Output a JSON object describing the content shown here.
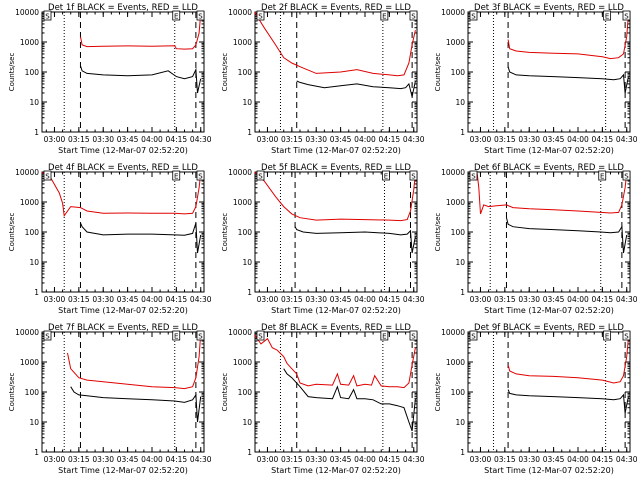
{
  "chart_data": [
    {
      "type": "line",
      "title": "Det 1f BLACK = Events, RED = LLD",
      "xlabel": "Start Time (12-Mar-07 02:52:20)",
      "ylabel": "Counts/sec",
      "y_scale": "log",
      "ylim": [
        1,
        10000
      ],
      "xlim": [
        "02:52:20",
        "04:32:00"
      ],
      "x_ticks": [
        "03:00",
        "03:15",
        "03:30",
        "03:45",
        "04:00",
        "04:15",
        "04:30"
      ],
      "y_ticks": [
        "1",
        "10",
        "100",
        "1000",
        "10000"
      ],
      "flags": [
        "S",
        "E",
        "S"
      ],
      "lines": {
        "dotted": [
          "03:06",
          "04:14"
        ],
        "dashed": [
          "03:16",
          "04:27"
        ]
      },
      "series": [
        {
          "color": "#e00000",
          "x": [
            "03:16",
            "03:17",
            "03:20",
            "03:30",
            "03:45",
            "04:00",
            "04:14",
            "04:15",
            "04:20",
            "04:25",
            "04:27",
            "04:29",
            "04:30"
          ],
          "y": [
            1500,
            800,
            700,
            720,
            740,
            720,
            750,
            600,
            580,
            600,
            800,
            2000,
            9000
          ]
        },
        {
          "color": "#000000",
          "x": [
            "03:16",
            "03:17",
            "03:20",
            "03:30",
            "03:45",
            "04:00",
            "04:10",
            "04:15",
            "04:20",
            "04:25",
            "04:27",
            "04:28",
            "04:30"
          ],
          "y": [
            160,
            110,
            90,
            80,
            75,
            80,
            110,
            70,
            60,
            70,
            120,
            20,
            60
          ]
        }
      ]
    },
    {
      "type": "line",
      "title": "Det 2f BLACK = Events, RED = LLD",
      "xlabel": "Start Time (12-Mar-07 02:52:20)",
      "ylabel": "Counts/sec",
      "y_scale": "log",
      "ylim": [
        1,
        10000
      ],
      "xlim": [
        "02:52:20",
        "04:32:00"
      ],
      "x_ticks": [
        "03:00",
        "03:15",
        "03:30",
        "03:45",
        "04:00",
        "04:15",
        "04:30"
      ],
      "y_ticks": [
        "1",
        "10",
        "100",
        "1000",
        "10000"
      ],
      "flags": [
        "S",
        "E",
        "S"
      ],
      "lines": {
        "dotted": [
          "03:08",
          "04:11"
        ],
        "dashed": [
          "03:18",
          "04:29"
        ]
      },
      "series": [
        {
          "color": "#e00000",
          "x": [
            "02:52",
            "02:58",
            "03:05",
            "03:10",
            "03:15",
            "03:20",
            "03:30",
            "03:45",
            "03:55",
            "04:05",
            "04:15",
            "04:20",
            "04:24",
            "04:27",
            "04:29",
            "04:31"
          ],
          "y": [
            10000,
            3000,
            800,
            300,
            200,
            150,
            90,
            100,
            120,
            90,
            80,
            75,
            80,
            200,
            800,
            2500
          ]
        },
        {
          "color": "#000000",
          "x": [
            "03:18",
            "03:20",
            "03:25",
            "03:35",
            "03:45",
            "03:55",
            "04:05",
            "04:15",
            "04:22",
            "04:25",
            "04:27",
            "04:29",
            "04:31"
          ],
          "y": [
            50,
            45,
            38,
            30,
            35,
            40,
            32,
            30,
            28,
            30,
            40,
            15,
            50
          ]
        }
      ]
    },
    {
      "type": "line",
      "title": "Det 3f BLACK = Events, RED = LLD",
      "xlabel": "Start Time (12-Mar-07 02:52:20)",
      "ylabel": "Counts/sec",
      "y_scale": "log",
      "ylim": [
        1,
        10000
      ],
      "xlim": [
        "02:52:20",
        "04:32:00"
      ],
      "x_ticks": [
        "03:00",
        "03:15",
        "03:30",
        "03:45",
        "04:00",
        "04:15",
        "04:30"
      ],
      "y_ticks": [
        "1",
        "10",
        "100",
        "1000",
        "10000"
      ],
      "flags": [
        "S",
        "E",
        "S"
      ],
      "lines": {
        "dotted": [
          "03:08",
          "04:17"
        ],
        "dashed": [
          "03:17",
          "04:29"
        ]
      },
      "series": [
        {
          "color": "#e00000",
          "x": [
            "03:17",
            "03:18",
            "03:22",
            "03:30",
            "03:45",
            "04:00",
            "04:15",
            "04:20",
            "04:25",
            "04:28",
            "04:30",
            "04:31"
          ],
          "y": [
            1200,
            600,
            500,
            450,
            420,
            400,
            320,
            280,
            300,
            400,
            1500,
            8000
          ]
        },
        {
          "color": "#000000",
          "x": [
            "03:17",
            "03:18",
            "03:22",
            "03:30",
            "03:45",
            "04:00",
            "04:15",
            "04:22",
            "04:26",
            "04:28",
            "04:29",
            "04:31"
          ],
          "y": [
            150,
            100,
            80,
            75,
            70,
            65,
            60,
            55,
            60,
            80,
            20,
            70
          ]
        }
      ]
    },
    {
      "type": "line",
      "title": "Det 4f BLACK = Events, RED = LLD",
      "xlabel": "Start Time (12-Mar-07 02:52:20)",
      "ylabel": "Counts/sec",
      "y_scale": "log",
      "ylim": [
        1,
        10000
      ],
      "xlim": [
        "02:52:20",
        "04:32:00"
      ],
      "x_ticks": [
        "03:00",
        "03:15",
        "03:30",
        "03:45",
        "04:00",
        "04:15",
        "04:30"
      ],
      "y_ticks": [
        "1",
        "10",
        "100",
        "1000",
        "10000"
      ],
      "flags": [
        "S",
        "E",
        "S"
      ],
      "lines": {
        "dotted": [
          "03:06",
          "04:14"
        ],
        "dashed": [
          "03:16",
          "04:27"
        ]
      },
      "series": [
        {
          "color": "#e00000",
          "x": [
            "02:52",
            "02:58",
            "03:03",
            "03:05",
            "03:06",
            "03:10",
            "03:16",
            "03:20",
            "03:30",
            "03:45",
            "04:00",
            "04:14",
            "04:20",
            "04:25",
            "04:27",
            "04:29",
            "04:30"
          ],
          "y": [
            10000,
            6000,
            2000,
            900,
            350,
            700,
            650,
            500,
            420,
            430,
            420,
            420,
            400,
            420,
            700,
            3000,
            9000
          ]
        },
        {
          "color": "#000000",
          "x": [
            "03:16",
            "03:17",
            "03:20",
            "03:30",
            "03:45",
            "04:00",
            "04:14",
            "04:20",
            "04:25",
            "04:27",
            "04:28",
            "04:30"
          ],
          "y": [
            200,
            150,
            100,
            80,
            85,
            85,
            80,
            78,
            90,
            200,
            20,
            80
          ]
        }
      ]
    },
    {
      "type": "line",
      "title": "Det 5f BLACK = Events, RED = LLD",
      "xlabel": "Start Time (12-Mar-07 02:52:20)",
      "ylabel": "Counts/sec",
      "y_scale": "log",
      "ylim": [
        1,
        10000
      ],
      "xlim": [
        "02:52:20",
        "04:32:00"
      ],
      "x_ticks": [
        "03:00",
        "03:15",
        "03:30",
        "03:45",
        "04:00",
        "04:15",
        "04:30"
      ],
      "y_ticks": [
        "1",
        "10",
        "100",
        "1000",
        "10000"
      ],
      "flags": [
        "S",
        "E",
        "S"
      ],
      "lines": {
        "dotted": [
          "03:08",
          "04:12"
        ],
        "dashed": [
          "03:17",
          "04:28"
        ]
      },
      "series": [
        {
          "color": "#e00000",
          "x": [
            "02:52",
            "02:58",
            "03:05",
            "03:10",
            "03:15",
            "03:20",
            "03:30",
            "03:45",
            "04:00",
            "04:15",
            "04:22",
            "04:26",
            "04:28",
            "04:30",
            "04:31"
          ],
          "y": [
            10000,
            5000,
            1500,
            700,
            400,
            300,
            250,
            270,
            260,
            250,
            240,
            260,
            500,
            2500,
            9000
          ]
        },
        {
          "color": "#000000",
          "x": [
            "03:17",
            "03:18",
            "03:22",
            "03:30",
            "03:45",
            "04:00",
            "04:15",
            "04:22",
            "04:26",
            "04:28",
            "04:29",
            "04:31"
          ],
          "y": [
            150,
            120,
            100,
            90,
            95,
            100,
            90,
            80,
            85,
            110,
            20,
            70
          ]
        }
      ]
    },
    {
      "type": "line",
      "title": "Det 6f BLACK = Events, RED = LLD",
      "xlabel": "Start Time (12-Mar-07 02:52:20)",
      "ylabel": "Counts/sec",
      "y_scale": "log",
      "ylim": [
        1,
        10000
      ],
      "xlim": [
        "02:52:20",
        "04:32:00"
      ],
      "x_ticks": [
        "03:00",
        "03:15",
        "03:30",
        "03:45",
        "04:00",
        "04:15",
        "04:30"
      ],
      "y_ticks": [
        "1",
        "10",
        "100",
        "1000",
        "10000"
      ],
      "flags": [
        "S",
        "E",
        "S"
      ],
      "lines": {
        "dotted": [
          "03:06",
          "04:14"
        ],
        "dashed": [
          "03:16",
          "04:27"
        ]
      },
      "series": [
        {
          "color": "#e00000",
          "x": [
            "02:58",
            "02:59",
            "03:00",
            "03:02",
            "03:05",
            "03:10",
            "03:16",
            "03:20",
            "03:30",
            "03:45",
            "04:00",
            "04:14",
            "04:20",
            "04:25",
            "04:27",
            "04:29",
            "04:30"
          ],
          "y": [
            9000,
            3000,
            400,
            800,
            700,
            750,
            800,
            650,
            600,
            550,
            500,
            450,
            430,
            450,
            800,
            3000,
            9000
          ]
        },
        {
          "color": "#000000",
          "x": [
            "03:16",
            "03:17",
            "03:20",
            "03:30",
            "03:45",
            "04:00",
            "04:14",
            "04:20",
            "04:25",
            "04:27",
            "04:28",
            "04:30"
          ],
          "y": [
            300,
            180,
            150,
            130,
            120,
            110,
            100,
            95,
            100,
            150,
            20,
            80
          ]
        }
      ]
    },
    {
      "type": "line",
      "title": "Det 7f BLACK = Events, RED = LLD",
      "xlabel": "Start Time (12-Mar-07 02:52:20)",
      "ylabel": "Counts/sec",
      "y_scale": "log",
      "ylim": [
        1,
        10000
      ],
      "xlim": [
        "02:52:20",
        "04:32:00"
      ],
      "x_ticks": [
        "03:00",
        "03:15",
        "03:30",
        "03:45",
        "04:00",
        "04:15",
        "04:30"
      ],
      "y_ticks": [
        "1",
        "10",
        "100",
        "1000",
        "10000"
      ],
      "flags": [
        "S",
        "E",
        "S"
      ],
      "lines": {
        "dotted": [
          "03:06",
          "04:14"
        ],
        "dashed": [
          "03:16",
          "04:27"
        ]
      },
      "series": [
        {
          "color": "#e00000",
          "x": [
            "03:08",
            "03:10",
            "03:15",
            "03:20",
            "03:30",
            "03:45",
            "04:00",
            "04:14",
            "04:20",
            "04:25",
            "04:27",
            "04:29",
            "04:30"
          ],
          "y": [
            2000,
            600,
            300,
            250,
            220,
            180,
            150,
            140,
            130,
            150,
            300,
            1500,
            9000
          ]
        },
        {
          "color": "#000000",
          "x": [
            "03:10",
            "03:12",
            "03:15",
            "03:20",
            "03:30",
            "03:45",
            "04:00",
            "04:14",
            "04:20",
            "04:25",
            "04:27",
            "04:28",
            "04:30"
          ],
          "y": [
            150,
            100,
            80,
            75,
            65,
            60,
            55,
            50,
            45,
            55,
            80,
            10,
            70
          ]
        }
      ]
    },
    {
      "type": "line",
      "title": "Det 8f BLACK = Events, RED = LLD",
      "xlabel": "Start Time (12-Mar-07 02:52:20)",
      "ylabel": "Counts/sec",
      "y_scale": "log",
      "ylim": [
        1,
        10000
      ],
      "xlim": [
        "02:52:20",
        "04:32:00"
      ],
      "x_ticks": [
        "03:00",
        "03:15",
        "03:30",
        "03:45",
        "04:00",
        "04:15",
        "04:30"
      ],
      "y_ticks": [
        "1",
        "10",
        "100",
        "1000",
        "10000"
      ],
      "flags": [
        "S",
        "E",
        "S"
      ],
      "lines": {
        "dotted": [
          "03:08",
          "04:11"
        ],
        "dashed": [
          "03:18",
          "04:29"
        ]
      },
      "series": [
        {
          "color": "#e00000",
          "x": [
            "02:52",
            "02:56",
            "03:00",
            "03:03",
            "03:06",
            "03:10",
            "03:12",
            "03:15",
            "03:18",
            "03:20",
            "03:25",
            "03:30",
            "03:40",
            "03:43",
            "03:45",
            "03:50",
            "03:53",
            "03:55",
            "04:00",
            "04:04",
            "04:06",
            "04:10",
            "04:15",
            "04:20",
            "04:24",
            "04:27",
            "04:29",
            "04:31"
          ],
          "y": [
            8000,
            4000,
            6000,
            3000,
            2500,
            1500,
            900,
            600,
            400,
            200,
            160,
            180,
            170,
            400,
            180,
            170,
            350,
            160,
            180,
            170,
            350,
            160,
            150,
            150,
            140,
            200,
            800,
            3000
          ]
        },
        {
          "color": "#000000",
          "x": [
            "03:10",
            "03:12",
            "03:15",
            "03:20",
            "03:25",
            "03:30",
            "03:40",
            "03:43",
            "03:45",
            "03:50",
            "03:53",
            "03:55",
            "04:00",
            "04:05",
            "04:10",
            "04:15",
            "04:20",
            "04:24",
            "04:27",
            "04:29",
            "04:31"
          ],
          "y": [
            600,
            400,
            300,
            150,
            70,
            65,
            60,
            150,
            65,
            60,
            120,
            60,
            60,
            55,
            40,
            40,
            35,
            30,
            10,
            5,
            60
          ]
        }
      ]
    },
    {
      "type": "line",
      "title": "Det 9f BLACK = Events, RED = LLD",
      "xlabel": "Start Time (12-Mar-07 02:52:20)",
      "ylabel": "Counts/sec",
      "y_scale": "log",
      "ylim": [
        1,
        10000
      ],
      "xlim": [
        "02:52:20",
        "04:32:00"
      ],
      "x_ticks": [
        "03:00",
        "03:15",
        "03:30",
        "03:45",
        "04:00",
        "04:15",
        "04:30"
      ],
      "y_ticks": [
        "1",
        "10",
        "100",
        "1000",
        "10000"
      ],
      "flags": [
        "S",
        "E",
        "S"
      ],
      "lines": {
        "dotted": [
          "03:08",
          "04:17"
        ],
        "dashed": [
          "03:17",
          "04:29"
        ]
      },
      "series": [
        {
          "color": "#e00000",
          "x": [
            "03:17",
            "03:18",
            "03:22",
            "03:30",
            "03:45",
            "04:00",
            "04:15",
            "04:22",
            "04:26",
            "04:28",
            "04:30",
            "04:31"
          ],
          "y": [
            800,
            500,
            400,
            350,
            330,
            300,
            250,
            200,
            220,
            350,
            1500,
            6000
          ]
        },
        {
          "color": "#000000",
          "x": [
            "03:17",
            "03:18",
            "03:22",
            "03:30",
            "03:45",
            "04:00",
            "04:15",
            "04:22",
            "04:26",
            "04:28",
            "04:29",
            "04:31"
          ],
          "y": [
            120,
            90,
            80,
            75,
            70,
            65,
            60,
            55,
            60,
            80,
            20,
            70
          ]
        }
      ]
    }
  ]
}
